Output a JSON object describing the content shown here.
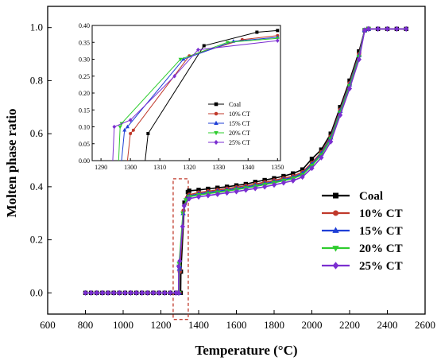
{
  "chart_data": {
    "type": "line",
    "title": "",
    "xlabel": "Temperature (°C)",
    "ylabel": "Molten phase ratio",
    "xlim": [
      600,
      2600
    ],
    "ylim": [
      -0.08,
      1.08
    ],
    "x_ticks": [
      600,
      800,
      1000,
      1200,
      1400,
      1600,
      1800,
      2000,
      2200,
      2400,
      2600
    ],
    "y_ticks": [
      0.0,
      0.2,
      0.4,
      0.6,
      0.8,
      1.0
    ],
    "legend_position": "right",
    "grid": false,
    "series": [
      {
        "name": "Coal",
        "color": "#000000",
        "marker": "square",
        "points": [
          [
            800,
            0
          ],
          [
            830,
            0
          ],
          [
            860,
            0
          ],
          [
            890,
            0
          ],
          [
            920,
            0
          ],
          [
            950,
            0
          ],
          [
            980,
            0
          ],
          [
            1010,
            0
          ],
          [
            1040,
            0
          ],
          [
            1070,
            0
          ],
          [
            1100,
            0
          ],
          [
            1130,
            0
          ],
          [
            1160,
            0
          ],
          [
            1190,
            0
          ],
          [
            1220,
            0
          ],
          [
            1250,
            0
          ],
          [
            1280,
            0
          ],
          [
            1300,
            0
          ],
          [
            1305,
            0
          ],
          [
            1306,
            0.08
          ],
          [
            1325,
            0.34
          ],
          [
            1343,
            0.38
          ],
          [
            1350,
            0.385
          ],
          [
            1400,
            0.388
          ],
          [
            1450,
            0.392
          ],
          [
            1500,
            0.396
          ],
          [
            1550,
            0.4
          ],
          [
            1600,
            0.405
          ],
          [
            1650,
            0.41
          ],
          [
            1700,
            0.418
          ],
          [
            1750,
            0.425
          ],
          [
            1800,
            0.432
          ],
          [
            1850,
            0.44
          ],
          [
            1900,
            0.45
          ],
          [
            1950,
            0.465
          ],
          [
            2000,
            0.505
          ],
          [
            2050,
            0.54
          ],
          [
            2100,
            0.6
          ],
          [
            2150,
            0.7
          ],
          [
            2200,
            0.8
          ],
          [
            2250,
            0.91
          ],
          [
            2280,
            0.99
          ],
          [
            2300,
            0.995
          ],
          [
            2350,
            0.995
          ],
          [
            2400,
            0.995
          ],
          [
            2450,
            0.995
          ],
          [
            2500,
            0.995
          ]
        ]
      },
      {
        "name": "10% CT",
        "color": "#c0392b",
        "marker": "circle",
        "points": [
          [
            1299,
            0
          ],
          [
            1300,
            0.08
          ],
          [
            1301,
            0.09
          ],
          [
            1320,
            0.31
          ],
          [
            1338,
            0.358
          ],
          [
            1350,
            0.37
          ],
          [
            1400,
            0.378
          ],
          [
            1450,
            0.383
          ],
          [
            1500,
            0.388
          ],
          [
            1550,
            0.393
          ],
          [
            1600,
            0.398
          ],
          [
            1650,
            0.404
          ],
          [
            1700,
            0.41
          ],
          [
            1750,
            0.417
          ],
          [
            1800,
            0.424
          ],
          [
            1850,
            0.432
          ],
          [
            1900,
            0.44
          ],
          [
            1950,
            0.455
          ],
          [
            2000,
            0.49
          ],
          [
            2050,
            0.53
          ],
          [
            2100,
            0.59
          ],
          [
            2150,
            0.69
          ],
          [
            2200,
            0.79
          ],
          [
            2250,
            0.9
          ],
          [
            2280,
            0.99
          ],
          [
            2300,
            0.995
          ]
        ]
      },
      {
        "name": "15% CT",
        "color": "#1f3fd6",
        "marker": "triangle",
        "points": [
          [
            1297,
            0
          ],
          [
            1298,
            0.09
          ],
          [
            1299,
            0.1
          ],
          [
            1318,
            0.3
          ],
          [
            1335,
            0.353
          ],
          [
            1350,
            0.365
          ],
          [
            1400,
            0.373
          ],
          [
            1450,
            0.378
          ],
          [
            1500,
            0.383
          ],
          [
            1550,
            0.388
          ],
          [
            1600,
            0.393
          ],
          [
            1650,
            0.399
          ],
          [
            1700,
            0.405
          ],
          [
            1750,
            0.412
          ],
          [
            1800,
            0.419
          ],
          [
            1850,
            0.427
          ],
          [
            1900,
            0.435
          ],
          [
            1950,
            0.45
          ],
          [
            2000,
            0.485
          ],
          [
            2050,
            0.525
          ],
          [
            2100,
            0.585
          ],
          [
            2150,
            0.685
          ],
          [
            2200,
            0.785
          ],
          [
            2250,
            0.895
          ],
          [
            2280,
            0.99
          ],
          [
            2300,
            0.995
          ]
        ]
      },
      {
        "name": "20% CT",
        "color": "#2ecc2e",
        "marker": "triangle-down",
        "points": [
          [
            1296,
            0
          ],
          [
            1296.5,
            0.1
          ],
          [
            1297,
            0.11
          ],
          [
            1317,
            0.3
          ],
          [
            1333,
            0.35
          ],
          [
            1350,
            0.362
          ],
          [
            1400,
            0.369
          ],
          [
            1450,
            0.374
          ],
          [
            1500,
            0.379
          ],
          [
            1550,
            0.384
          ],
          [
            1600,
            0.389
          ],
          [
            1650,
            0.395
          ],
          [
            1700,
            0.401
          ],
          [
            1750,
            0.408
          ],
          [
            1800,
            0.415
          ],
          [
            1850,
            0.423
          ],
          [
            1900,
            0.431
          ],
          [
            1950,
            0.445
          ],
          [
            2000,
            0.48
          ],
          [
            2050,
            0.52
          ],
          [
            2100,
            0.58
          ],
          [
            2150,
            0.68
          ],
          [
            2200,
            0.78
          ],
          [
            2250,
            0.89
          ],
          [
            2280,
            0.99
          ],
          [
            2300,
            0.995
          ]
        ]
      },
      {
        "name": "25% CT",
        "color": "#7b2fd0",
        "marker": "diamond",
        "points": [
          [
            800,
            0
          ],
          [
            830,
            0
          ],
          [
            860,
            0
          ],
          [
            890,
            0
          ],
          [
            920,
            0
          ],
          [
            950,
            0
          ],
          [
            980,
            0
          ],
          [
            1010,
            0
          ],
          [
            1040,
            0
          ],
          [
            1070,
            0
          ],
          [
            1100,
            0
          ],
          [
            1130,
            0
          ],
          [
            1160,
            0
          ],
          [
            1190,
            0
          ],
          [
            1220,
            0
          ],
          [
            1250,
            0
          ],
          [
            1280,
            0
          ],
          [
            1294,
            0
          ],
          [
            1294.5,
            0.1
          ],
          [
            1300,
            0.12
          ],
          [
            1315,
            0.25
          ],
          [
            1323,
            0.328
          ],
          [
            1350,
            0.355
          ],
          [
            1400,
            0.362
          ],
          [
            1450,
            0.367
          ],
          [
            1500,
            0.372
          ],
          [
            1550,
            0.377
          ],
          [
            1600,
            0.382
          ],
          [
            1650,
            0.388
          ],
          [
            1700,
            0.394
          ],
          [
            1750,
            0.4
          ],
          [
            1800,
            0.407
          ],
          [
            1850,
            0.415
          ],
          [
            1900,
            0.423
          ],
          [
            1950,
            0.437
          ],
          [
            2000,
            0.47
          ],
          [
            2050,
            0.51
          ],
          [
            2100,
            0.57
          ],
          [
            2150,
            0.67
          ],
          [
            2200,
            0.77
          ],
          [
            2250,
            0.88
          ],
          [
            2280,
            0.99
          ],
          [
            2300,
            0.995
          ],
          [
            2350,
            0.995
          ],
          [
            2400,
            0.995
          ],
          [
            2450,
            0.995
          ],
          [
            2500,
            0.995
          ]
        ]
      }
    ],
    "highlight_box": {
      "x_range": [
        1265,
        1345
      ],
      "y_range": [
        -0.1,
        0.43
      ],
      "color": "#c0392b",
      "style": "dashed"
    },
    "inset": {
      "xlim": [
        1287,
        1351
      ],
      "ylim": [
        0,
        0.4
      ],
      "x_ticks": [
        1290,
        1300,
        1310,
        1320,
        1330,
        1340,
        1350
      ],
      "y_ticks": [
        0.0,
        0.05,
        0.1,
        0.15,
        0.2,
        0.25,
        0.3,
        0.35,
        0.4
      ],
      "x_tick_labels": [
        "1290",
        "1300",
        "1310",
        "1320",
        "1330",
        "1340",
        "1350"
      ],
      "y_tick_labels": [
        "0.00",
        "0.05",
        "0.10",
        "0.15",
        "0.20",
        "0.25",
        "0.30",
        "0.35",
        "0.40"
      ],
      "legend_position": "lower-right"
    }
  }
}
